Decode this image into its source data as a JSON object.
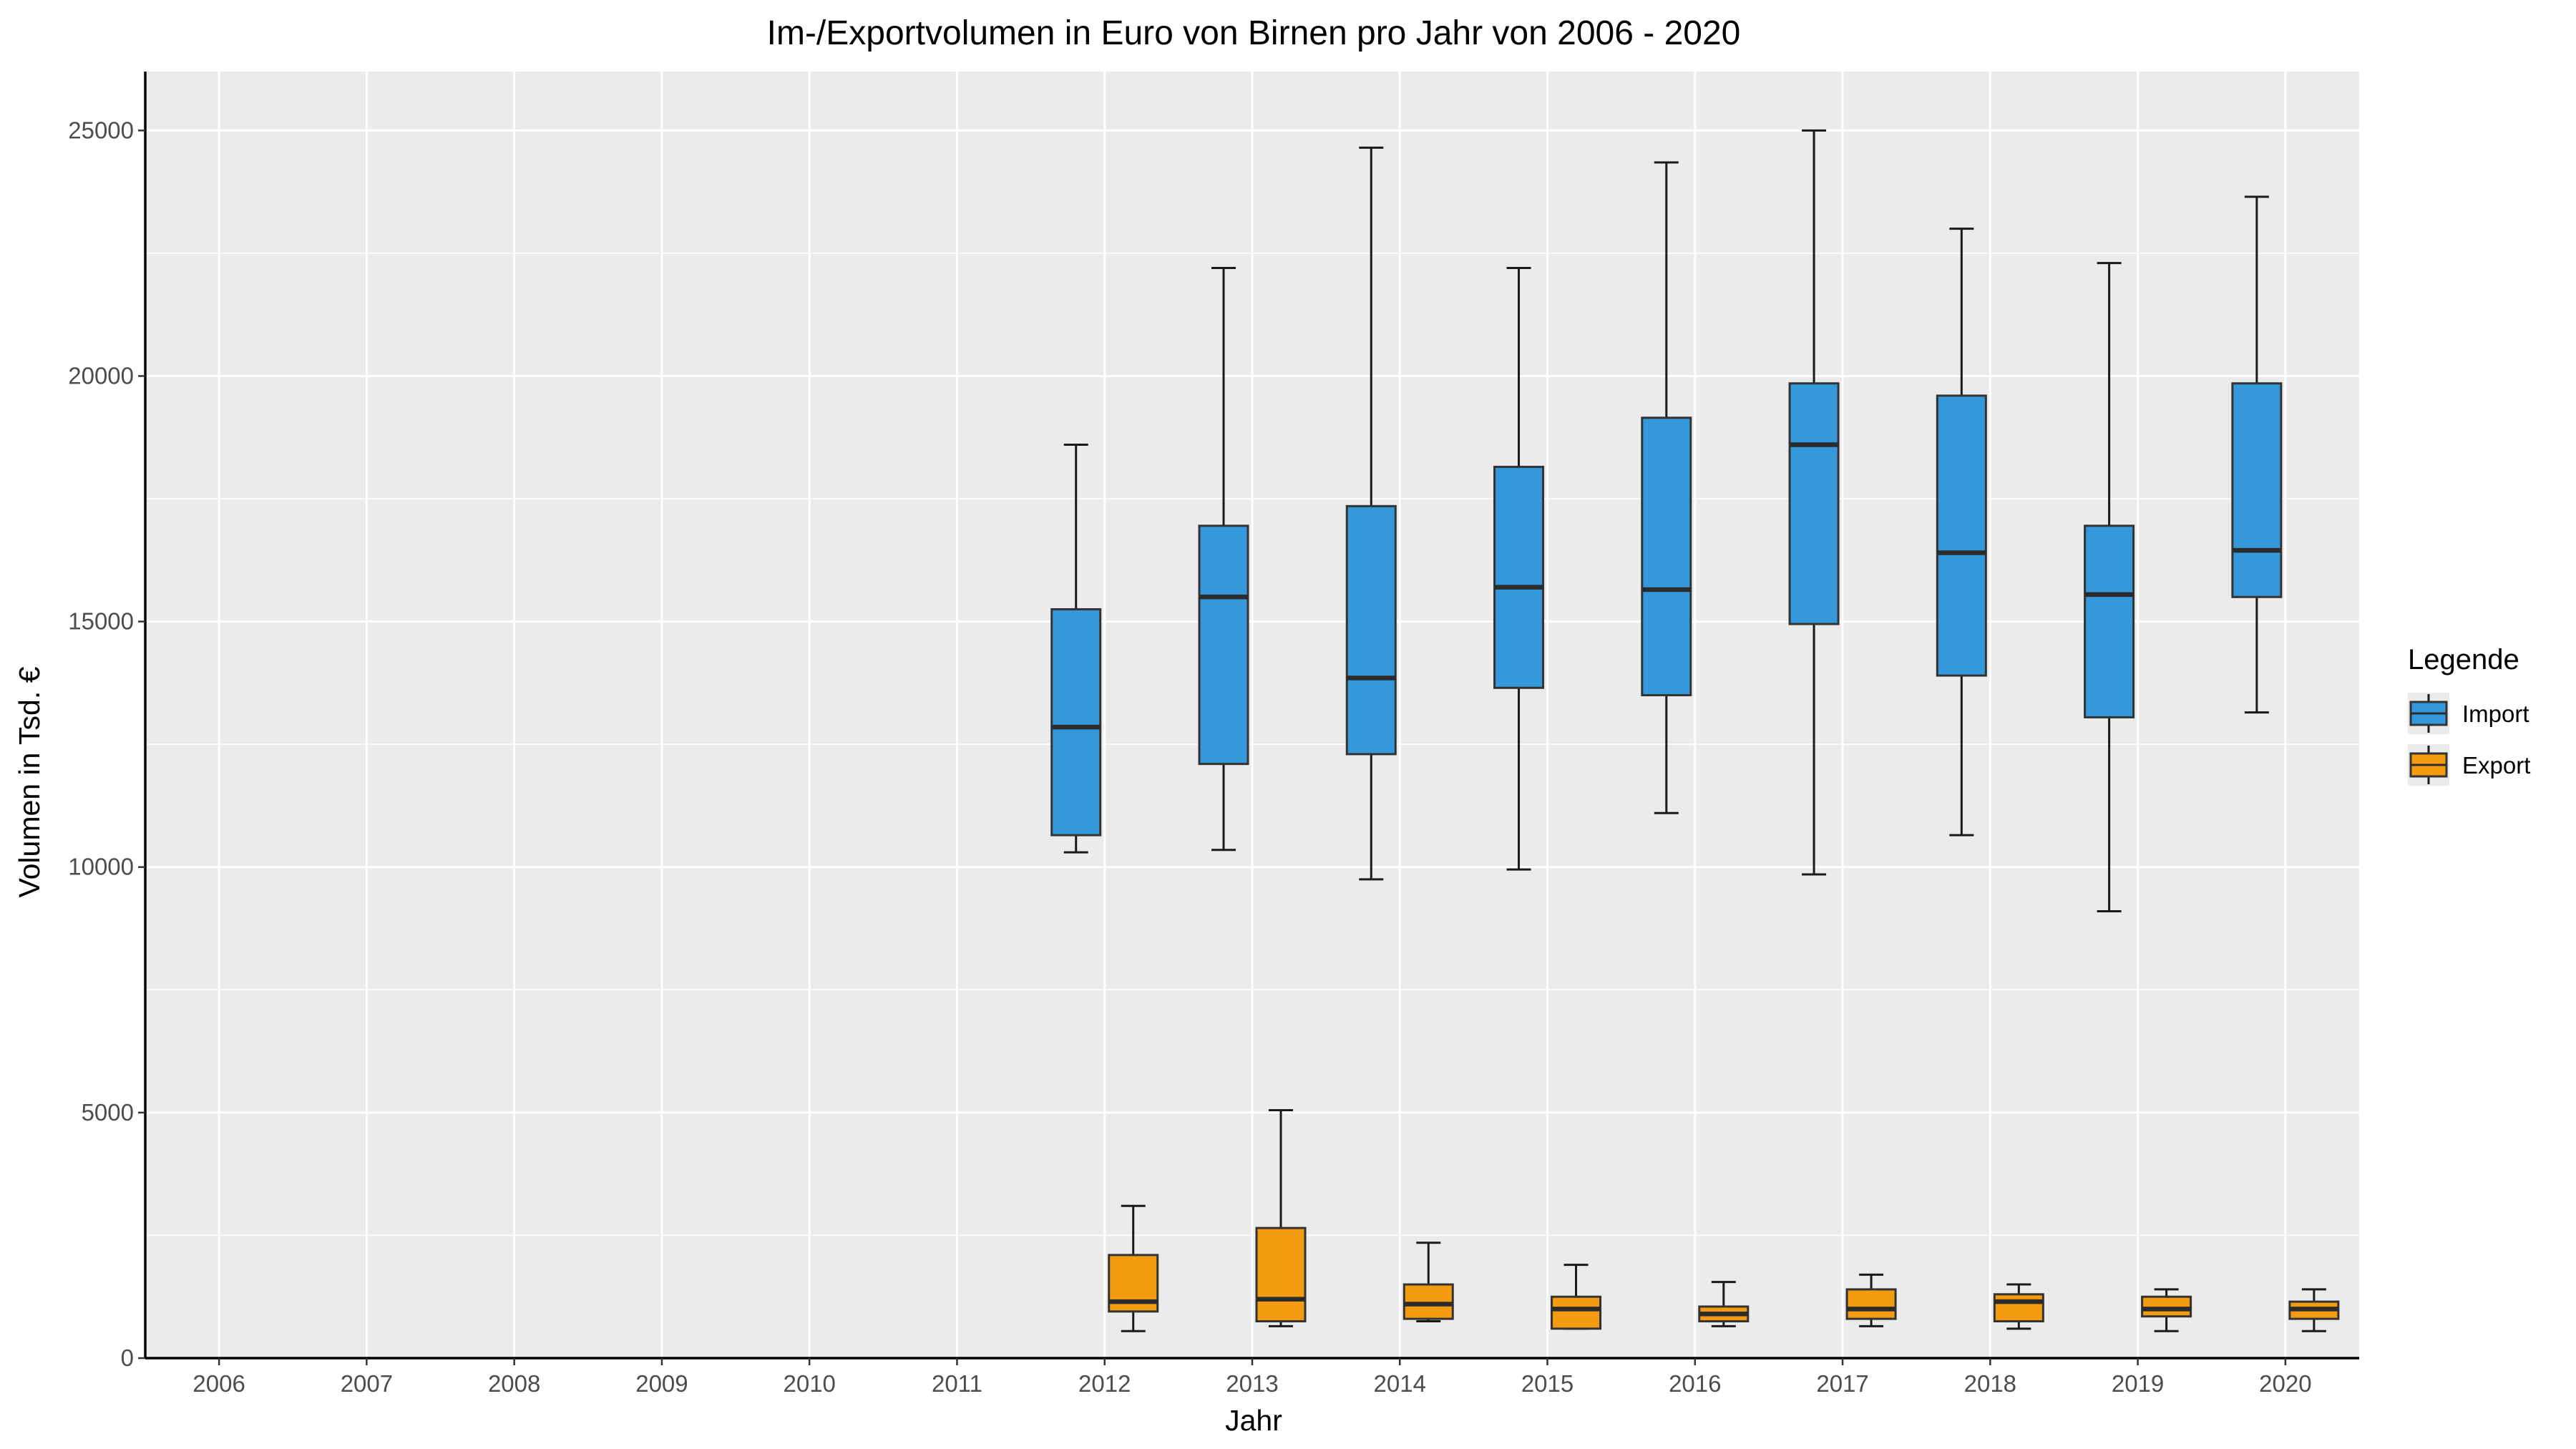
{
  "chart_data": {
    "type": "boxplot",
    "title": "Im-/Exportvolumen in Euro von Birnen pro Jahr von 2006 - 2020",
    "xlabel": "Jahr",
    "ylabel": "Volumen in Tsd. €",
    "categories": [
      "2006",
      "2007",
      "2008",
      "2009",
      "2010",
      "2011",
      "2012",
      "2013",
      "2014",
      "2015",
      "2016",
      "2017",
      "2018",
      "2019",
      "2020"
    ],
    "ylim": [
      0,
      26200
    ],
    "yticks": [
      0,
      5000,
      10000,
      15000,
      20000,
      25000
    ],
    "grid": true,
    "legend": {
      "title": "Legende",
      "position": "right"
    },
    "series": [
      {
        "name": "Import",
        "color": "#3498db",
        "boxes": [
          {
            "x": "2012",
            "min": 10300,
            "q1": 10650,
            "median": 12850,
            "q3": 15250,
            "max": 18600
          },
          {
            "x": "2013",
            "min": 10350,
            "q1": 12100,
            "median": 15500,
            "q3": 16950,
            "max": 22200
          },
          {
            "x": "2014",
            "min": 9750,
            "q1": 12300,
            "median": 13850,
            "q3": 17350,
            "max": 24650
          },
          {
            "x": "2015",
            "min": 9950,
            "q1": 13650,
            "median": 15700,
            "q3": 18150,
            "max": 22200
          },
          {
            "x": "2016",
            "min": 11100,
            "q1": 13500,
            "median": 15650,
            "q3": 19150,
            "max": 24350
          },
          {
            "x": "2017",
            "min": 9850,
            "q1": 14950,
            "median": 18600,
            "q3": 19850,
            "max": 25000
          },
          {
            "x": "2018",
            "min": 10650,
            "q1": 13900,
            "median": 16400,
            "q3": 19600,
            "max": 23000
          },
          {
            "x": "2019",
            "min": 9100,
            "q1": 13050,
            "median": 15550,
            "q3": 16950,
            "max": 22300
          },
          {
            "x": "2020",
            "min": 13150,
            "q1": 15500,
            "median": 16450,
            "q3": 19850,
            "max": 23650
          }
        ]
      },
      {
        "name": "Export",
        "color": "#f39c12",
        "boxes": [
          {
            "x": "2012",
            "min": 550,
            "q1": 950,
            "median": 1150,
            "q3": 2100,
            "max": 3100
          },
          {
            "x": "2013",
            "min": 650,
            "q1": 750,
            "median": 1200,
            "q3": 2650,
            "max": 5050
          },
          {
            "x": "2014",
            "min": 750,
            "q1": 800,
            "median": 1100,
            "q3": 1500,
            "max": 2350
          },
          {
            "x": "2015",
            "min": 600,
            "q1": 600,
            "median": 1000,
            "q3": 1250,
            "max": 1900
          },
          {
            "x": "2016",
            "min": 650,
            "q1": 750,
            "median": 900,
            "q3": 1050,
            "max": 1550
          },
          {
            "x": "2017",
            "min": 650,
            "q1": 800,
            "median": 1000,
            "q3": 1400,
            "max": 1700
          },
          {
            "x": "2018",
            "min": 600,
            "q1": 750,
            "median": 1150,
            "q3": 1300,
            "max": 1500
          },
          {
            "x": "2019",
            "min": 550,
            "q1": 850,
            "median": 1000,
            "q3": 1250,
            "max": 1400
          },
          {
            "x": "2020",
            "min": 550,
            "q1": 800,
            "median": 1000,
            "q3": 1150,
            "max": 1400
          }
        ]
      }
    ]
  }
}
